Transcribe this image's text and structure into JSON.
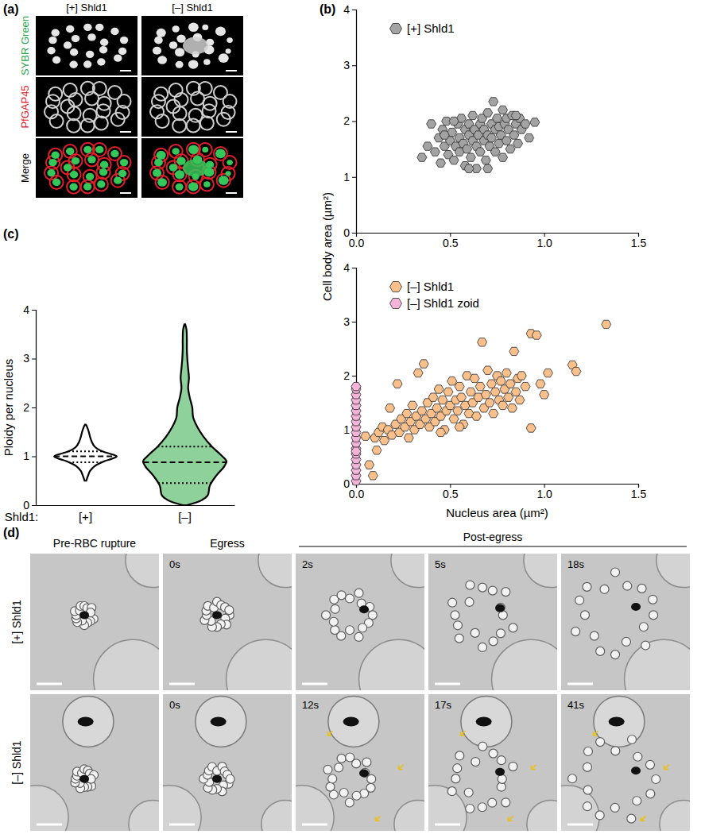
{
  "figure": {
    "panel_a": {
      "letter": "(a)",
      "columns": [
        "[+] Shld1",
        "[–] Shld1"
      ],
      "rows": [
        {
          "label": "SYBR Green",
          "color": "#2aa84a"
        },
        {
          "label": "PfGAP45",
          "color": "#e0202a"
        },
        {
          "label": "Merge",
          "color": "#000000"
        }
      ]
    },
    "panel_b": {
      "letter": "(b)",
      "y_label": "Cell body area (µm²)"
    },
    "panel_c": {
      "letter": "(c)"
    },
    "panel_d": {
      "letter": "(d)",
      "headers": [
        "Pre-RBC rupture",
        "Egress",
        "Post-egress"
      ],
      "rows": [
        {
          "label": "[+] Shld1",
          "times": [
            "0s",
            "2s",
            "5s",
            "18s"
          ]
        },
        {
          "label": "[–] Shld1",
          "times": [
            "0s",
            "12s",
            "17s",
            "41s"
          ]
        }
      ]
    }
  },
  "chart_data": [
    {
      "type": "scatter",
      "legend": "top-left",
      "xlim": [
        0,
        1.5
      ],
      "xticks": [
        {
          "value": 0,
          "label": "0.0"
        },
        {
          "value": 0.5,
          "label": "0.5"
        },
        {
          "value": 1,
          "label": "1.0"
        },
        {
          "value": 1.5,
          "label": "1.5"
        }
      ],
      "ylim": [
        0,
        4
      ],
      "yticks": [
        0,
        1,
        2,
        3,
        4
      ],
      "series": [
        {
          "name": "[+] Shld1",
          "color": "#a3a3a3",
          "marker": "hexagon",
          "x": [
            0.35,
            0.38,
            0.4,
            0.42,
            0.44,
            0.45,
            0.46,
            0.47,
            0.48,
            0.49,
            0.5,
            0.51,
            0.52,
            0.53,
            0.54,
            0.55,
            0.55,
            0.56,
            0.57,
            0.58,
            0.58,
            0.59,
            0.6,
            0.6,
            0.61,
            0.62,
            0.62,
            0.63,
            0.64,
            0.64,
            0.65,
            0.66,
            0.66,
            0.67,
            0.68,
            0.68,
            0.69,
            0.7,
            0.7,
            0.71,
            0.72,
            0.72,
            0.73,
            0.74,
            0.74,
            0.75,
            0.76,
            0.76,
            0.77,
            0.78,
            0.78,
            0.79,
            0.8,
            0.8,
            0.81,
            0.82,
            0.83,
            0.84,
            0.85,
            0.86,
            0.87,
            0.88,
            0.9,
            0.92,
            0.95,
            0.6,
            0.52,
            0.47,
            0.7,
            0.85
          ],
          "values": [
            1.35,
            1.55,
            1.95,
            1.45,
            1.7,
            1.25,
            1.85,
            1.55,
            2.0,
            1.4,
            1.65,
            1.8,
            1.3,
            1.55,
            1.95,
            1.7,
            1.45,
            2.05,
            1.6,
            1.85,
            1.2,
            1.5,
            1.75,
            1.95,
            1.35,
            1.65,
            2.1,
            1.85,
            1.55,
            1.15,
            1.75,
            1.95,
            1.45,
            2.05,
            1.65,
            1.85,
            1.3,
            1.75,
            2.15,
            1.55,
            1.95,
            1.7,
            2.35,
            1.45,
            1.85,
            2.05,
            1.6,
            1.9,
            1.75,
            2.2,
            1.35,
            1.95,
            1.65,
            2.05,
            1.85,
            1.5,
            2.1,
            1.75,
            1.95,
            1.6,
            2.05,
            1.85,
            1.95,
            1.7,
            1.98,
            1.15,
            2.0,
            1.75,
            1.15,
            2.1
          ]
        }
      ]
    },
    {
      "type": "scatter",
      "legend": "top-left",
      "x_label": "Nucleus area (µm²)",
      "xlim": [
        0,
        1.5
      ],
      "xticks": [
        {
          "value": 0,
          "label": "0.0"
        },
        {
          "value": 0.5,
          "label": "0.5"
        },
        {
          "value": 1,
          "label": "1.0"
        },
        {
          "value": 1.5,
          "label": "1.5"
        }
      ],
      "ylim": [
        0,
        4
      ],
      "yticks": [
        0,
        1,
        2,
        3,
        4
      ],
      "series": [
        {
          "name": "[–] Shld1",
          "color": "#f9c08c",
          "marker": "hexagon",
          "x": [
            0.05,
            0.07,
            0.09,
            0.1,
            0.11,
            0.12,
            0.14,
            0.15,
            0.17,
            0.18,
            0.19,
            0.21,
            0.22,
            0.23,
            0.24,
            0.26,
            0.27,
            0.28,
            0.29,
            0.3,
            0.31,
            0.32,
            0.33,
            0.34,
            0.35,
            0.36,
            0.37,
            0.38,
            0.39,
            0.4,
            0.41,
            0.42,
            0.43,
            0.44,
            0.45,
            0.46,
            0.47,
            0.48,
            0.49,
            0.5,
            0.51,
            0.52,
            0.53,
            0.54,
            0.55,
            0.56,
            0.57,
            0.58,
            0.59,
            0.6,
            0.61,
            0.62,
            0.63,
            0.64,
            0.65,
            0.66,
            0.67,
            0.68,
            0.69,
            0.7,
            0.71,
            0.72,
            0.73,
            0.74,
            0.75,
            0.76,
            0.77,
            0.78,
            0.79,
            0.8,
            0.81,
            0.82,
            0.83,
            0.84,
            0.85,
            0.86,
            0.87,
            0.88,
            0.9,
            0.93,
            0.93,
            0.96,
            0.98,
            1.0,
            1.02,
            1.15,
            1.17,
            1.33,
            0.55,
            0.45
          ],
          "values": [
            0.88,
            0.35,
            0.15,
            0.85,
            0.62,
            0.95,
            1.05,
            0.8,
            1.0,
            1.4,
            0.9,
            1.1,
            1.85,
            0.95,
            1.2,
            1.05,
            1.3,
            0.85,
            1.15,
            1.45,
            1.0,
            1.25,
            2.05,
            1.1,
            1.35,
            2.22,
            1.2,
            1.5,
            1.05,
            1.3,
            1.6,
            1.15,
            1.4,
            1.75,
            1.25,
            1.55,
            1.0,
            1.35,
            1.7,
            1.45,
            1.9,
            1.2,
            1.55,
            1.35,
            1.8,
            1.6,
            1.1,
            1.45,
            2.0,
            1.3,
            1.7,
            1.5,
            1.95,
            1.25,
            1.6,
            1.8,
            2.62,
            1.4,
            1.65,
            2.1,
            1.5,
            1.85,
            1.3,
            1.7,
            2.0,
            1.55,
            1.9,
            1.45,
            1.75,
            2.05,
            1.6,
            1.85,
            1.4,
            2.45,
            1.7,
            1.95,
            1.55,
            2.0,
            1.8,
            1.03,
            2.78,
            2.75,
            1.85,
            1.65,
            2.05,
            2.2,
            2.08,
            2.95,
            1.05,
            0.95
          ]
        },
        {
          "name": "[–] Shld1 zoid",
          "color": "#f4b3d8",
          "marker": "hexagon",
          "x": [
            0,
            0,
            0,
            0,
            0,
            0,
            0,
            0,
            0,
            0,
            0,
            0,
            0,
            0,
            0,
            0,
            0,
            0,
            0,
            0
          ],
          "values": [
            0.05,
            0.15,
            0.25,
            0.35,
            0.45,
            0.55,
            0.65,
            0.75,
            0.85,
            0.95,
            1.05,
            1.15,
            1.25,
            1.35,
            1.45,
            1.55,
            1.65,
            1.75,
            1.8,
            0.6
          ]
        }
      ]
    },
    {
      "type": "violin",
      "x_label": "Shld1:",
      "y_label": "Ploidy per nucleus",
      "categories": [
        "[+]",
        "[–]"
      ],
      "colors": [
        "#ffffff",
        "#8fd19b"
      ],
      "ylim": [
        0,
        4
      ],
      "yticks": [
        0,
        1,
        2,
        3,
        4
      ],
      "violins": [
        {
          "y": [
            0.5,
            0.6,
            0.7,
            0.8,
            0.9,
            0.95,
            1.0,
            1.05,
            1.1,
            1.2,
            1.3,
            1.4,
            1.5,
            1.6,
            1.65
          ],
          "density": [
            0.02,
            0.06,
            0.11,
            0.22,
            0.45,
            0.64,
            0.75,
            0.6,
            0.41,
            0.22,
            0.15,
            0.11,
            0.08,
            0.04,
            0.01
          ],
          "median": 1.0,
          "quartiles": [
            0.88,
            1.1
          ]
        },
        {
          "y": [
            0.0,
            0.1,
            0.2,
            0.4,
            0.6,
            0.8,
            0.9,
            1.0,
            1.2,
            1.4,
            1.6,
            1.8,
            2.0,
            2.2,
            2.4,
            2.6,
            2.8,
            3.0,
            3.2,
            3.4,
            3.6,
            3.7
          ],
          "density": [
            0.05,
            0.4,
            0.55,
            0.6,
            0.75,
            0.95,
            1.0,
            0.9,
            0.65,
            0.45,
            0.3,
            0.2,
            0.18,
            0.12,
            0.08,
            0.1,
            0.08,
            0.06,
            0.05,
            0.05,
            0.04,
            0.01
          ],
          "median": 0.88,
          "quartiles": [
            0.45,
            1.2
          ]
        }
      ]
    }
  ]
}
